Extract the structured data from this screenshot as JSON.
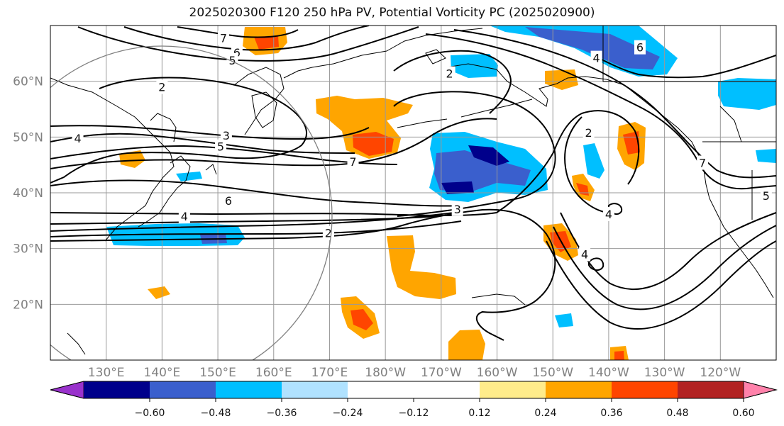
{
  "title": "2025020300 F120 250 hPa PV, Potential Vorticity PC (2025020900)",
  "map": {
    "lon_range": [
      120,
      250
    ],
    "lat_range": [
      10,
      70
    ],
    "lat_ticks": [
      {
        "lat": 60,
        "label": "60°N"
      },
      {
        "lat": 50,
        "label": "50°N"
      },
      {
        "lat": 40,
        "label": "40°N"
      },
      {
        "lat": 30,
        "label": "30°N"
      },
      {
        "lat": 20,
        "label": "20°N"
      }
    ],
    "lon_ticks": [
      {
        "lon": 130,
        "label": "130°E"
      },
      {
        "lon": 140,
        "label": "140°E"
      },
      {
        "lon": 150,
        "label": "150°E"
      },
      {
        "lon": 160,
        "label": "160°E"
      },
      {
        "lon": 170,
        "label": "170°E"
      },
      {
        "lon": 180,
        "label": "180°W"
      },
      {
        "lon": 190,
        "label": "170°W"
      },
      {
        "lon": 200,
        "label": "160°W"
      },
      {
        "lon": 210,
        "label": "150°W"
      },
      {
        "lon": 220,
        "label": "140°W"
      },
      {
        "lon": 230,
        "label": "130°W"
      },
      {
        "lon": 240,
        "label": "120°W"
      }
    ],
    "gridlines": true
  },
  "colorbar": {
    "colors": [
      "#9932cc",
      "#00008b",
      "#3a5fcd",
      "#00bfff",
      "#b0e2ff",
      "#ffffff",
      "#ffffff",
      "#ffec8b",
      "#ffa500",
      "#ff4500",
      "#b22222",
      "#ff82ab"
    ],
    "labels": [
      "−0.60",
      "−0.48",
      "−0.36",
      "−0.24",
      "−0.12",
      "0.12",
      "0.24",
      "0.36",
      "0.48",
      "0.60"
    ]
  },
  "contour_labels": [
    {
      "text": "7",
      "lon": 151,
      "lat": 67.8
    },
    {
      "text": "6",
      "lon": 153.4,
      "lat": 65.2
    },
    {
      "text": "5",
      "lon": 152.6,
      "lat": 63.8
    },
    {
      "text": "2",
      "lon": 140,
      "lat": 59
    },
    {
      "text": "2",
      "lon": 191.5,
      "lat": 61.4
    },
    {
      "text": "4",
      "lon": 124.9,
      "lat": 49.8
    },
    {
      "text": "3",
      "lon": 151.5,
      "lat": 50.3
    },
    {
      "text": "5",
      "lon": 150.5,
      "lat": 48.3
    },
    {
      "text": "7",
      "lon": 174.2,
      "lat": 45.6
    },
    {
      "text": "6",
      "lon": 151.9,
      "lat": 38.6
    },
    {
      "text": "4",
      "lon": 144,
      "lat": 35.8
    },
    {
      "text": "2",
      "lon": 169.8,
      "lat": 32.8
    },
    {
      "text": "3",
      "lon": 192.9,
      "lat": 37.1
    },
    {
      "text": "2",
      "lon": 216.4,
      "lat": 50.8
    },
    {
      "text": "4",
      "lon": 217.8,
      "lat": 64.2
    },
    {
      "text": "6",
      "lon": 225.6,
      "lat": 66.1
    },
    {
      "text": "7",
      "lon": 236.8,
      "lat": 45.4
    },
    {
      "text": "5",
      "lon": 248.2,
      "lat": 39.5
    },
    {
      "text": "4",
      "lon": 220,
      "lat": 36.2
    },
    {
      "text": "4",
      "lon": 215.7,
      "lat": 29
    }
  ]
}
